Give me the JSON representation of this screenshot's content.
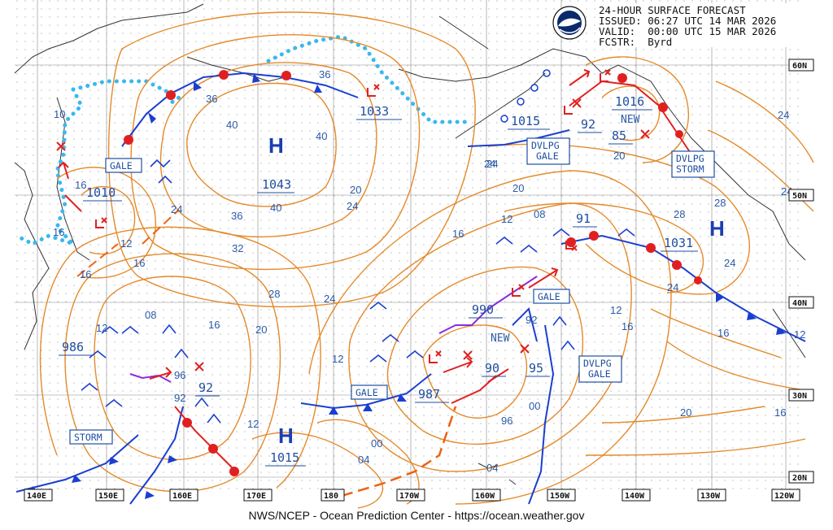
{
  "header": {
    "line1": "24-HOUR SURFACE FORECAST",
    "line2": "ISSUED: 06:27 UTC 14 MAR 2026",
    "line3": "VALID:  00:00 UTC 15 MAR 2026",
    "line4": "FCSTR:  Byrd"
  },
  "logo_alt": "NOAA",
  "credit": "NWS/NCEP - Ocean Prediction Center - https://ocean.weather.gov",
  "longitude_labels": [
    "140E",
    "150E",
    "160E",
    "170E",
    "180",
    "170W",
    "160W",
    "150W",
    "140W",
    "130W",
    "120W"
  ],
  "latitude_labels": [
    "60N",
    "50N",
    "40N",
    "30N",
    "20N"
  ],
  "pressure_centers": [
    {
      "type": "H",
      "value": "1043"
    },
    {
      "type": "H",
      "value": "1031"
    },
    {
      "type": "H",
      "value": "1015"
    },
    {
      "type": "L",
      "value": "1033"
    },
    {
      "type": "L",
      "value": "1010"
    },
    {
      "type": "L",
      "value": "1015"
    },
    {
      "type": "L",
      "value": "1016"
    },
    {
      "type": "L",
      "value": "986"
    },
    {
      "type": "L",
      "value": "92"
    },
    {
      "type": "L",
      "value": "990"
    },
    {
      "type": "L",
      "value": "987"
    },
    {
      "type": "L",
      "value": "90"
    },
    {
      "type": "L",
      "value": "95"
    },
    {
      "type": "L",
      "value": "91"
    },
    {
      "type": "L",
      "value": "92"
    },
    {
      "type": "L",
      "value": "85"
    }
  ],
  "warnings": [
    "GALE",
    "GALE",
    "GALE",
    "STORM",
    "GALE",
    "DVLPG GALE",
    "DVLPG GALE",
    "DVLPG STORM"
  ],
  "new_labels": [
    "NEW",
    "NEW"
  ],
  "isobar_labels": [
    "10",
    "16",
    "16",
    "16",
    "12",
    "16",
    "36",
    "40",
    "40",
    "36",
    "40",
    "36",
    "32",
    "28",
    "24",
    "20",
    "24",
    "24",
    "16",
    "12",
    "20",
    "16",
    "12",
    "08",
    "16",
    "20",
    "24",
    "28",
    "28",
    "24",
    "24",
    "16",
    "12",
    "12",
    "08",
    "92",
    "96",
    "04",
    "00",
    "04",
    "96",
    "92",
    "00",
    "12",
    "24",
    "20",
    "12",
    "24",
    "16",
    "24",
    "20"
  ]
}
